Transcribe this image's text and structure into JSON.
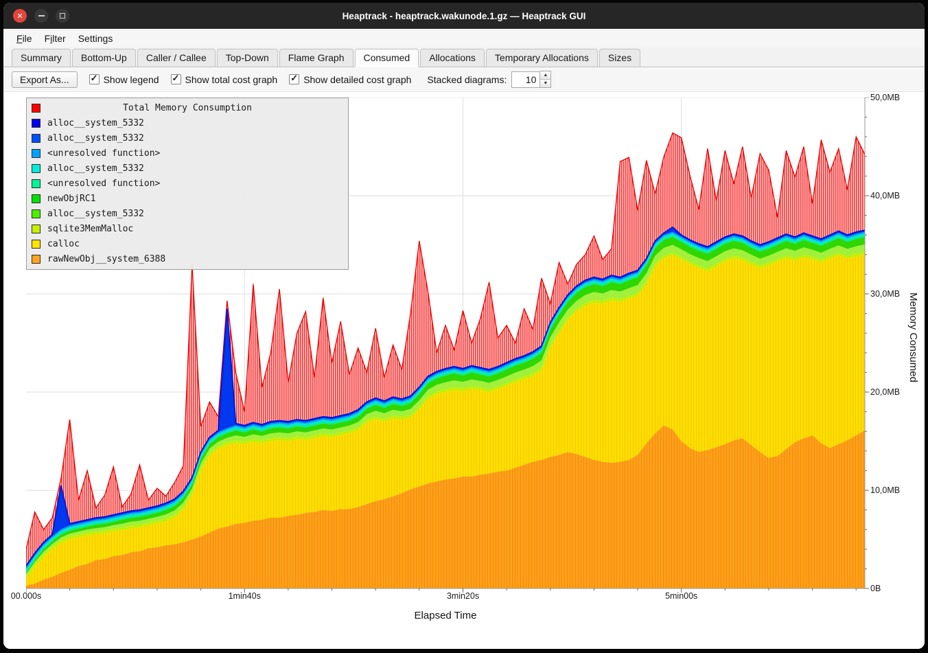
{
  "window": {
    "title": "Heaptrack - heaptrack.wakunode.1.gz — Heaptrack GUI"
  },
  "menu": {
    "items": [
      {
        "label": "File",
        "mnemonic": 0
      },
      {
        "label": "Filter",
        "mnemonic": 1
      },
      {
        "label": "Settings",
        "mnemonic": 6
      }
    ]
  },
  "tabs": {
    "items": [
      {
        "label": "Summary",
        "active": false
      },
      {
        "label": "Bottom-Up",
        "active": false
      },
      {
        "label": "Caller / Callee",
        "active": false
      },
      {
        "label": "Top-Down",
        "active": false
      },
      {
        "label": "Flame Graph",
        "active": false
      },
      {
        "label": "Consumed",
        "active": true
      },
      {
        "label": "Allocations",
        "active": false
      },
      {
        "label": "Temporary Allocations",
        "active": false
      },
      {
        "label": "Sizes",
        "active": false
      }
    ]
  },
  "toolbar": {
    "export_label": "Export As...",
    "checkboxes": [
      {
        "label": "Show legend",
        "checked": true
      },
      {
        "label": "Show total cost graph",
        "checked": true
      },
      {
        "label": "Show detailed cost graph",
        "checked": true
      }
    ],
    "stacked_label": "Stacked diagrams:",
    "stacked_value": "10"
  },
  "legend": {
    "title": {
      "label": "Total Memory Consumption",
      "color": "#ff0000"
    },
    "items": [
      {
        "label": "alloc__system_5332",
        "color": "#0000ee"
      },
      {
        "label": "alloc__system_5332",
        "color": "#0050ff"
      },
      {
        "label": "<unresolved function>",
        "color": "#00a2ff"
      },
      {
        "label": "alloc__system_5332",
        "color": "#00ecd8"
      },
      {
        "label": "<unresolved function>",
        "color": "#00f596"
      },
      {
        "label": "newObjRC1",
        "color": "#00e400"
      },
      {
        "label": "alloc__system_5332",
        "color": "#4cf000"
      },
      {
        "label": "sqlite3MemMalloc",
        "color": "#c8ee00"
      },
      {
        "label": "calloc",
        "color": "#ffe400"
      },
      {
        "label": "rawNewObj__system_6388",
        "color": "#ffa41e"
      }
    ]
  },
  "chart_data": {
    "type": "area",
    "stacked": true,
    "title": "Total Memory Consumption",
    "xlabel": "Elapsed Time",
    "ylabel": "Memory Consumed",
    "ylim": [
      0,
      50
    ],
    "unit": "MB",
    "t_max": 384,
    "t_step": 4,
    "x_ticks": [
      {
        "t": 0,
        "label": "00.000s"
      },
      {
        "t": 100,
        "label": "1min40s"
      },
      {
        "t": 200,
        "label": "3min20s"
      },
      {
        "t": 300,
        "label": "5min00s"
      }
    ],
    "y_ticks": [
      {
        "v": 0,
        "label": "0B"
      },
      {
        "v": 10,
        "label": "10,0MB"
      },
      {
        "v": 20,
        "label": "20,0MB"
      },
      {
        "v": 30,
        "label": "30,0MB"
      },
      {
        "v": 40,
        "label": "40,0MB"
      },
      {
        "v": 50,
        "label": "50,0MB"
      }
    ],
    "stack_tops_mb": {
      "rawNewObj__system_6388": [
        0.3,
        0.5,
        0.9,
        1.2,
        1.6,
        1.9,
        2.3,
        2.5,
        2.9,
        3.0,
        3.3,
        3.4,
        3.7,
        3.8,
        4.1,
        4.2,
        4.4,
        4.5,
        4.7,
        5.0,
        5.3,
        5.7,
        6.1,
        6.3,
        6.6,
        6.7,
        6.9,
        7.0,
        7.2,
        7.2,
        7.4,
        7.5,
        7.7,
        7.8,
        8.0,
        7.9,
        8.1,
        8.1,
        8.3,
        8.6,
        8.9,
        9.1,
        9.4,
        9.7,
        10.1,
        10.4,
        10.7,
        10.9,
        11.1,
        11.2,
        11.4,
        11.4,
        11.6,
        11.7,
        11.9,
        12.0,
        12.3,
        12.6,
        12.9,
        13.1,
        13.4,
        13.6,
        13.9,
        13.7,
        13.4,
        13.1,
        12.9,
        12.8,
        12.9,
        13.1,
        13.6,
        14.8,
        15.8,
        16.6,
        16.2,
        15.0,
        14.3,
        13.9,
        14.1,
        14.4,
        14.7,
        15.1,
        15.3,
        14.6,
        13.9,
        13.3,
        13.5,
        14.2,
        14.9,
        15.3,
        15.6,
        14.8,
        14.3,
        14.7,
        15.1,
        15.6,
        16.1
      ],
      "calloc": [
        1.0,
        2.2,
        3.2,
        4.0,
        4.6,
        5.0,
        5.2,
        5.4,
        5.5,
        5.6,
        5.8,
        5.9,
        6.1,
        6.2,
        6.4,
        6.6,
        6.8,
        7.2,
        8.0,
        9.5,
        12.0,
        13.5,
        14.2,
        14.6,
        14.8,
        14.7,
        14.9,
        14.8,
        15.0,
        15.1,
        15.0,
        15.2,
        15.1,
        15.3,
        15.5,
        15.4,
        15.6,
        15.8,
        16.1,
        16.9,
        17.2,
        17.0,
        17.3,
        17.2,
        17.4,
        18.2,
        19.3,
        19.8,
        20.0,
        20.2,
        20.1,
        20.3,
        20.2,
        20.0,
        20.3,
        20.6,
        21.0,
        21.3,
        21.6,
        22.2,
        24.5,
        26.0,
        27.3,
        28.2,
        28.8,
        29.1,
        29.0,
        29.3,
        29.2,
        29.5,
        29.8,
        31.0,
        32.8,
        33.6,
        33.9,
        33.5,
        33.0,
        32.6,
        32.3,
        32.8,
        33.3,
        33.6,
        33.4,
        33.0,
        32.6,
        32.9,
        33.3,
        33.6,
        33.4,
        33.7,
        33.5,
        33.2,
        33.6,
        33.9,
        33.6,
        33.8,
        34.0
      ],
      "green_group_top": [
        1.6,
        2.9,
        4.0,
        4.8,
        5.5,
        5.9,
        6.1,
        6.3,
        6.5,
        6.6,
        6.8,
        7.0,
        7.2,
        7.3,
        7.5,
        7.7,
        8.0,
        8.4,
        9.2,
        10.6,
        13.2,
        14.7,
        15.4,
        15.8,
        16.1,
        15.9,
        16.2,
        16.0,
        16.3,
        16.4,
        16.3,
        16.5,
        16.4,
        16.6,
        16.8,
        16.7,
        16.9,
        17.1,
        17.5,
        18.3,
        18.7,
        18.4,
        18.8,
        18.6,
        18.9,
        19.8,
        20.9,
        21.4,
        21.7,
        21.9,
        21.7,
        22.0,
        21.8,
        21.6,
        21.9,
        22.3,
        22.7,
        23.0,
        23.4,
        24.0,
        26.4,
        27.9,
        29.2,
        30.1,
        30.7,
        31.0,
        30.8,
        31.2,
        31.0,
        31.4,
        31.7,
        32.9,
        34.7,
        35.5,
        35.8,
        35.3,
        34.8,
        34.4,
        34.1,
        34.6,
        35.1,
        35.4,
        35.2,
        34.7,
        34.3,
        34.6,
        35.0,
        35.4,
        35.1,
        35.5,
        35.2,
        34.9,
        35.3,
        35.7,
        35.3,
        35.6,
        35.8
      ],
      "alloc_blue_top": [
        2.3,
        3.6,
        4.7,
        5.5,
        10.5,
        6.6,
        6.8,
        7.0,
        7.2,
        7.3,
        7.5,
        7.7,
        7.9,
        8.0,
        8.2,
        8.4,
        8.7,
        9.1,
        9.9,
        11.3,
        13.9,
        15.4,
        16.1,
        28.5,
        16.8,
        16.6,
        16.9,
        16.7,
        17.0,
        17.1,
        17.0,
        17.2,
        17.1,
        17.3,
        17.5,
        17.4,
        17.6,
        17.8,
        18.2,
        19.0,
        19.4,
        19.1,
        19.5,
        19.3,
        19.6,
        20.5,
        21.6,
        22.1,
        22.4,
        22.6,
        22.4,
        22.7,
        22.5,
        22.3,
        22.6,
        23.0,
        23.4,
        23.7,
        24.1,
        24.7,
        27.1,
        28.6,
        29.9,
        30.8,
        31.4,
        31.7,
        31.5,
        31.9,
        31.7,
        32.1,
        32.4,
        33.6,
        35.4,
        36.2,
        36.8,
        36.0,
        35.5,
        35.1,
        34.8,
        35.3,
        35.8,
        36.1,
        35.9,
        35.4,
        35.0,
        35.3,
        35.7,
        36.1,
        35.8,
        36.2,
        35.9,
        35.6,
        36.0,
        36.4,
        36.0,
        36.3,
        36.5
      ],
      "total": [
        4.0,
        7.8,
        6.0,
        7.2,
        11.2,
        17.2,
        9.0,
        12.0,
        8.2,
        9.5,
        12.4,
        8.3,
        9.6,
        12.6,
        9.0,
        10.2,
        9.4,
        10.8,
        12.5,
        33.0,
        16.5,
        19.0,
        17.5,
        29.3,
        22.0,
        18.0,
        31.0,
        20.5,
        24.0,
        30.5,
        21.0,
        26.0,
        28.2,
        21.5,
        29.6,
        23.0,
        27.2,
        21.8,
        24.5,
        22.0,
        26.5,
        21.5,
        24.8,
        22.3,
        28.0,
        35.4,
        30.2,
        24.0,
        26.8,
        24.3,
        28.3,
        25.0,
        27.5,
        31.2,
        25.5,
        26.8,
        25.0,
        28.5,
        26.4,
        31.6,
        29.0,
        33.2,
        31.0,
        33.0,
        34.0,
        35.9,
        33.5,
        34.6,
        43.5,
        43.9,
        38.5,
        43.6,
        40.2,
        44.0,
        46.4,
        45.9,
        42.0,
        38.6,
        44.8,
        39.5,
        44.6,
        41.2,
        45.0,
        39.8,
        44.3,
        42.6,
        37.8,
        44.6,
        41.9,
        45.0,
        39.2,
        45.7,
        42.4,
        44.8,
        40.6,
        46.0,
        44.2
      ]
    },
    "thin_offsets_mb": {
      "sqlite3MemMalloc": 0.28,
      "unresolved_spring": 0.16,
      "alloc_cyan": 0.36,
      "unresolved_lightblue": 0.52
    },
    "colors": {
      "total_bg": "#ffc9c9",
      "total_hatch": "#f73535",
      "total_line": "#e80000",
      "blue_fill": "#0038f0",
      "blue_line": "#0016d8",
      "lightblue": "#00a2f2",
      "cyan": "#00e6d0",
      "spring": "#00ef8e",
      "green": "#2fd600",
      "green_light": "#a0f03c",
      "yellow_green": "#c8ee00",
      "yellow_bg": "#ffdf00",
      "yellow_hatch": "#efc800",
      "orange_bg": "#ffa01e",
      "orange_hatch": "#f18d00",
      "grid": "#dedede",
      "axis": "#9a9a9a",
      "tick": "#666666"
    }
  }
}
